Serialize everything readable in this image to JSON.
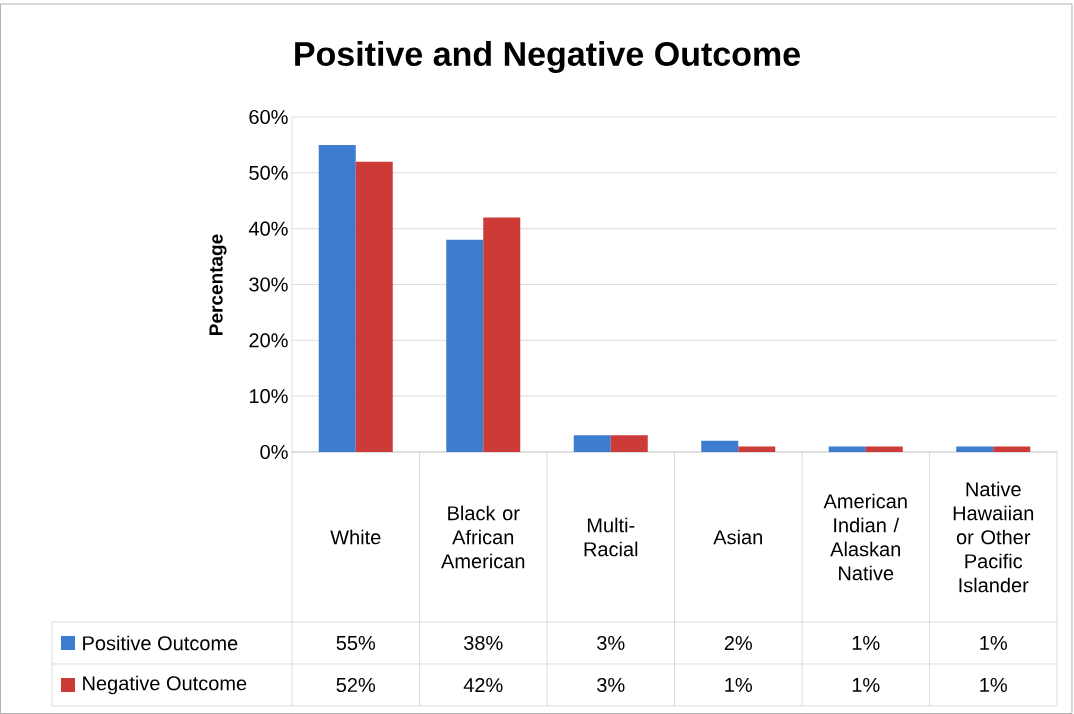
{
  "chart_data": {
    "type": "bar",
    "title": "Positive and Negative Outcome",
    "ylabel": "Percentage",
    "categories": [
      "White",
      "Black or African American",
      "Multi-Racial",
      "Asian",
      "American Indian / Alaskan Native",
      "Native Hawaiian or Other Pacific Islander"
    ],
    "series": [
      {
        "name": "Positive Outcome",
        "color": "#3c7dd0",
        "values": [
          55,
          38,
          3,
          2,
          1,
          1
        ],
        "value_labels": [
          "55%",
          "38%",
          "3%",
          "2%",
          "1%",
          "1%"
        ]
      },
      {
        "name": "Negative Outcome",
        "color": "#cc3b38",
        "values": [
          52,
          42,
          3,
          1,
          1,
          1
        ],
        "value_labels": [
          "52%",
          "42%",
          "3%",
          "1%",
          "1%",
          "1%"
        ]
      }
    ],
    "ylim": [
      0,
      60
    ],
    "yticks": [
      {
        "value": 0,
        "label": "0%"
      },
      {
        "value": 10,
        "label": "10%"
      },
      {
        "value": 20,
        "label": "20%"
      },
      {
        "value": 30,
        "label": "30%"
      },
      {
        "value": 40,
        "label": "40%"
      },
      {
        "value": 50,
        "label": "50%"
      },
      {
        "value": 60,
        "label": "60%"
      }
    ],
    "grid": "y",
    "legend": "bottom"
  }
}
